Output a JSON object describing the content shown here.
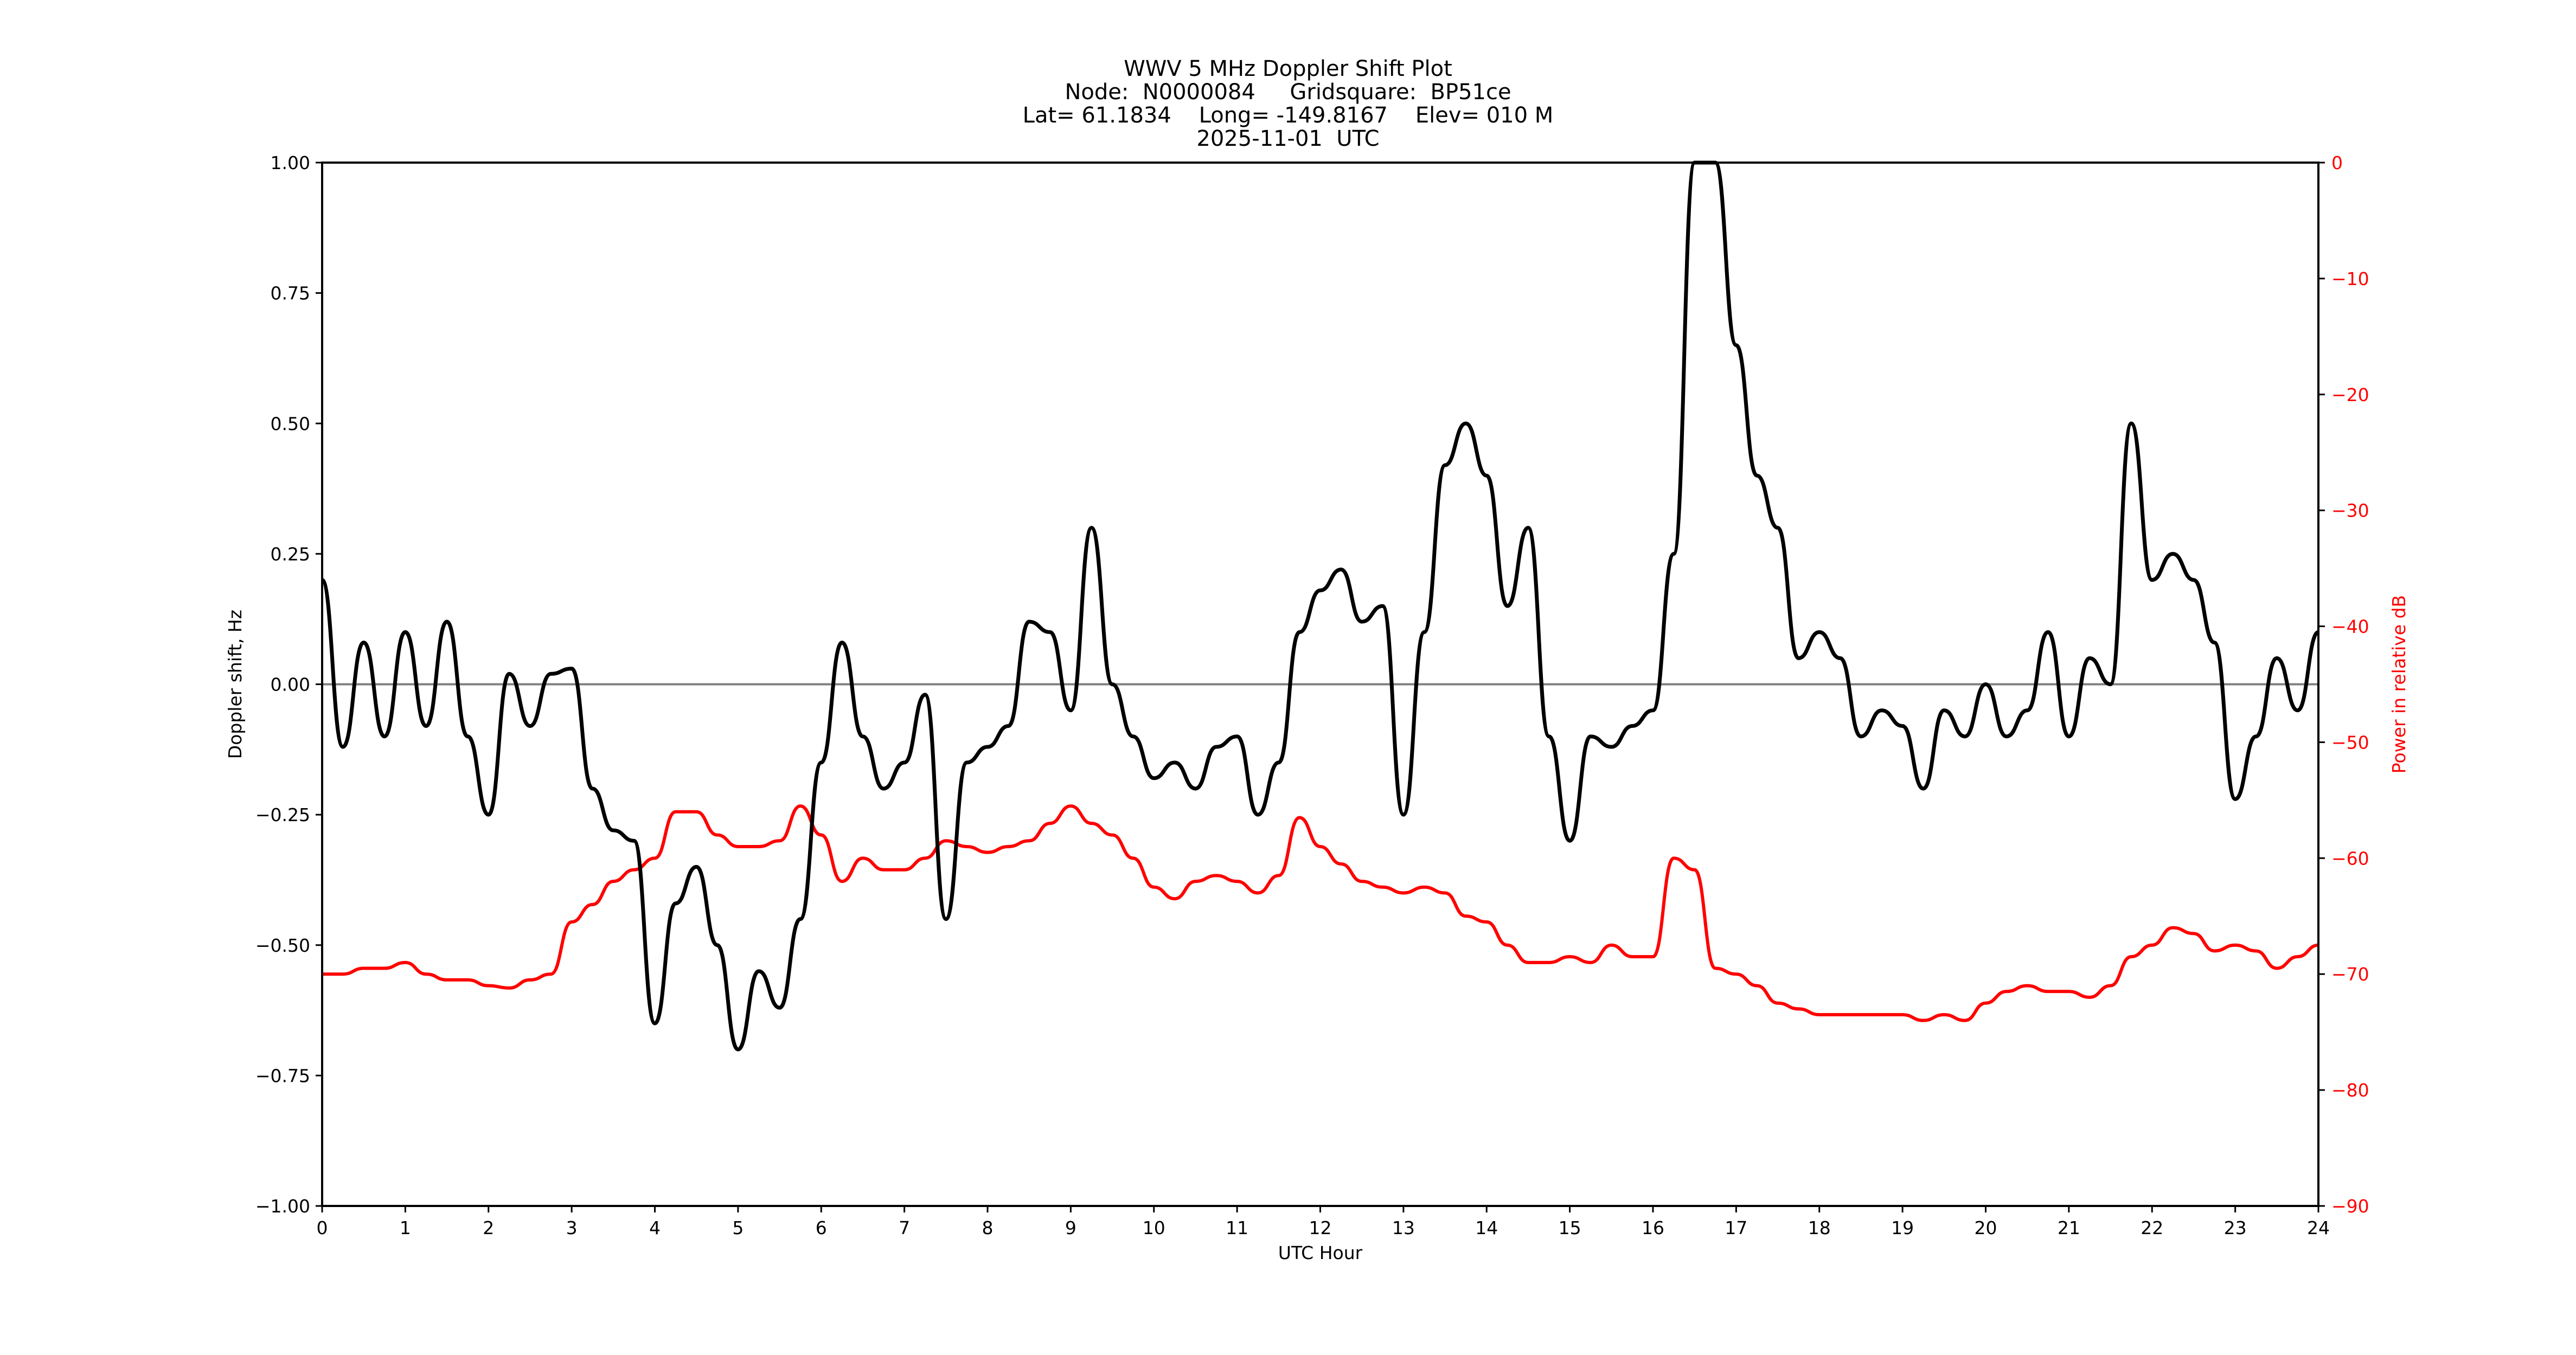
{
  "figure": {
    "title_lines": [
      "WWV 5 MHz Doppler Shift Plot",
      "Node:  N0000084     Gridsquare:  BP51ce",
      "Lat= 61.1834    Long= -149.8167    Elev= 010 M",
      "2025-11-01  UTC"
    ],
    "xlabel": "UTC Hour",
    "ylabel_left": "Doppler shift, Hz",
    "ylabel_right": "Power in relative dB",
    "colors": {
      "doppler": "#000000",
      "power": "#ff0000",
      "zero_line": "#808080",
      "right_axis_text": "#ff0000"
    }
  },
  "chart_data": {
    "type": "line",
    "title": "WWV 5 MHz Doppler Shift Plot",
    "subtitle": "Node: N0000084  Gridsquare: BP51ce  Lat= 61.1834  Long= -149.8167  Elev= 010 M  2025-11-01 UTC",
    "xlabel": "UTC Hour",
    "ylabel": "Doppler shift, Hz",
    "ylabel_right": "Power in relative dB",
    "xlim": [
      0,
      24
    ],
    "ylim": [
      -1.0,
      1.0
    ],
    "ylim_right": [
      -90,
      0
    ],
    "x_ticks": [
      0,
      1,
      2,
      3,
      4,
      5,
      6,
      7,
      8,
      9,
      10,
      11,
      12,
      13,
      14,
      15,
      16,
      17,
      18,
      19,
      20,
      21,
      22,
      23,
      24
    ],
    "y_ticks": [
      "1.00",
      "0.75",
      "0.50",
      "0.25",
      "0.00",
      "−0.25",
      "−0.50",
      "−0.75",
      "−1.00"
    ],
    "y_ticks_right": [
      "0",
      "−10",
      "−20",
      "−30",
      "−40",
      "−50",
      "−60",
      "−70",
      "−80",
      "−90"
    ],
    "grid": false,
    "reference_line": {
      "y": 0.0,
      "color": "#808080"
    },
    "x": [
      0,
      0.25,
      0.5,
      0.75,
      1,
      1.25,
      1.5,
      1.75,
      2,
      2.25,
      2.5,
      2.75,
      3,
      3.25,
      3.5,
      3.75,
      4,
      4.25,
      4.5,
      4.75,
      5,
      5.25,
      5.5,
      5.75,
      6,
      6.25,
      6.5,
      6.75,
      7,
      7.25,
      7.5,
      7.75,
      8,
      8.25,
      8.5,
      8.75,
      9,
      9.25,
      9.5,
      9.75,
      10,
      10.25,
      10.5,
      10.75,
      11,
      11.25,
      11.5,
      11.75,
      12,
      12.25,
      12.5,
      12.75,
      13,
      13.25,
      13.5,
      13.75,
      14,
      14.25,
      14.5,
      14.75,
      15,
      15.25,
      15.5,
      15.75,
      16,
      16.25,
      16.5,
      16.75,
      17,
      17.25,
      17.5,
      17.75,
      18,
      18.25,
      18.5,
      18.75,
      19,
      19.25,
      19.5,
      19.75,
      20,
      20.25,
      20.5,
      20.75,
      21,
      21.25,
      21.5,
      21.75,
      22,
      22.25,
      22.5,
      22.75,
      23,
      23.25,
      23.5,
      23.75,
      24
    ],
    "series": [
      {
        "name": "Doppler shift (Hz)",
        "axis": "left",
        "color": "#000000",
        "values": [
          0.2,
          -0.12,
          0.08,
          -0.1,
          0.1,
          -0.08,
          0.12,
          -0.1,
          -0.25,
          0.02,
          -0.08,
          0.02,
          0.03,
          -0.2,
          -0.28,
          -0.3,
          -0.65,
          -0.42,
          -0.35,
          -0.5,
          -0.7,
          -0.55,
          -0.62,
          -0.45,
          -0.15,
          0.08,
          -0.1,
          -0.2,
          -0.15,
          -0.02,
          -0.45,
          -0.15,
          -0.12,
          -0.08,
          0.12,
          0.1,
          -0.05,
          0.3,
          0.0,
          -0.1,
          -0.18,
          -0.15,
          -0.2,
          -0.12,
          -0.1,
          -0.25,
          -0.15,
          0.1,
          0.18,
          0.22,
          0.12,
          0.15,
          -0.25,
          0.1,
          0.42,
          0.5,
          0.4,
          0.15,
          0.3,
          -0.1,
          -0.3,
          -0.1,
          -0.12,
          -0.08,
          -0.05,
          0.25,
          1.0,
          1.0,
          0.65,
          0.4,
          0.3,
          0.05,
          0.1,
          0.05,
          -0.1,
          -0.05,
          -0.08,
          -0.2,
          -0.05,
          -0.1,
          0.0,
          -0.1,
          -0.05,
          0.1,
          -0.1,
          0.05,
          0.0,
          0.5,
          0.2,
          0.25,
          0.2,
          0.08,
          -0.22,
          -0.1,
          0.05,
          -0.05,
          0.1,
          0.03,
          0.03
        ]
      },
      {
        "name": "Power (relative dB)",
        "axis": "right",
        "color": "#ff0000",
        "values": [
          -70,
          -70,
          -69.5,
          -69.5,
          -69,
          -70,
          -70.5,
          -70.5,
          -71,
          -71.2,
          -70.5,
          -70,
          -65.5,
          -64,
          -62,
          -61,
          -60,
          -56,
          -56,
          -58,
          -59,
          -59,
          -58.5,
          -55.5,
          -58,
          -62,
          -60,
          -61,
          -61,
          -60,
          -58.5,
          -59,
          -59.5,
          -59,
          -58.5,
          -57,
          -55.5,
          -57,
          -58,
          -60,
          -62.5,
          -63.5,
          -62,
          -61.5,
          -62,
          -63,
          -61.5,
          -56.5,
          -59,
          -60.5,
          -62,
          -62.5,
          -63,
          -62.5,
          -63,
          -65,
          -65.5,
          -67.5,
          -69,
          -69,
          -68.5,
          -69,
          -67.5,
          -68.5,
          -68.5,
          -60,
          -61,
          -69.5,
          -70,
          -71,
          -72.5,
          -73,
          -73.5,
          -73.5,
          -73.5,
          -73.5,
          -73.5,
          -74,
          -73.5,
          -74,
          -72.5,
          -71.5,
          -71,
          -71.5,
          -71.5,
          -72,
          -71,
          -68.5,
          -67.5,
          -66,
          -66.5,
          -68,
          -67.5,
          -68,
          -69.5,
          -68.5,
          -67.5,
          -67,
          -66.5
        ]
      }
    ]
  }
}
